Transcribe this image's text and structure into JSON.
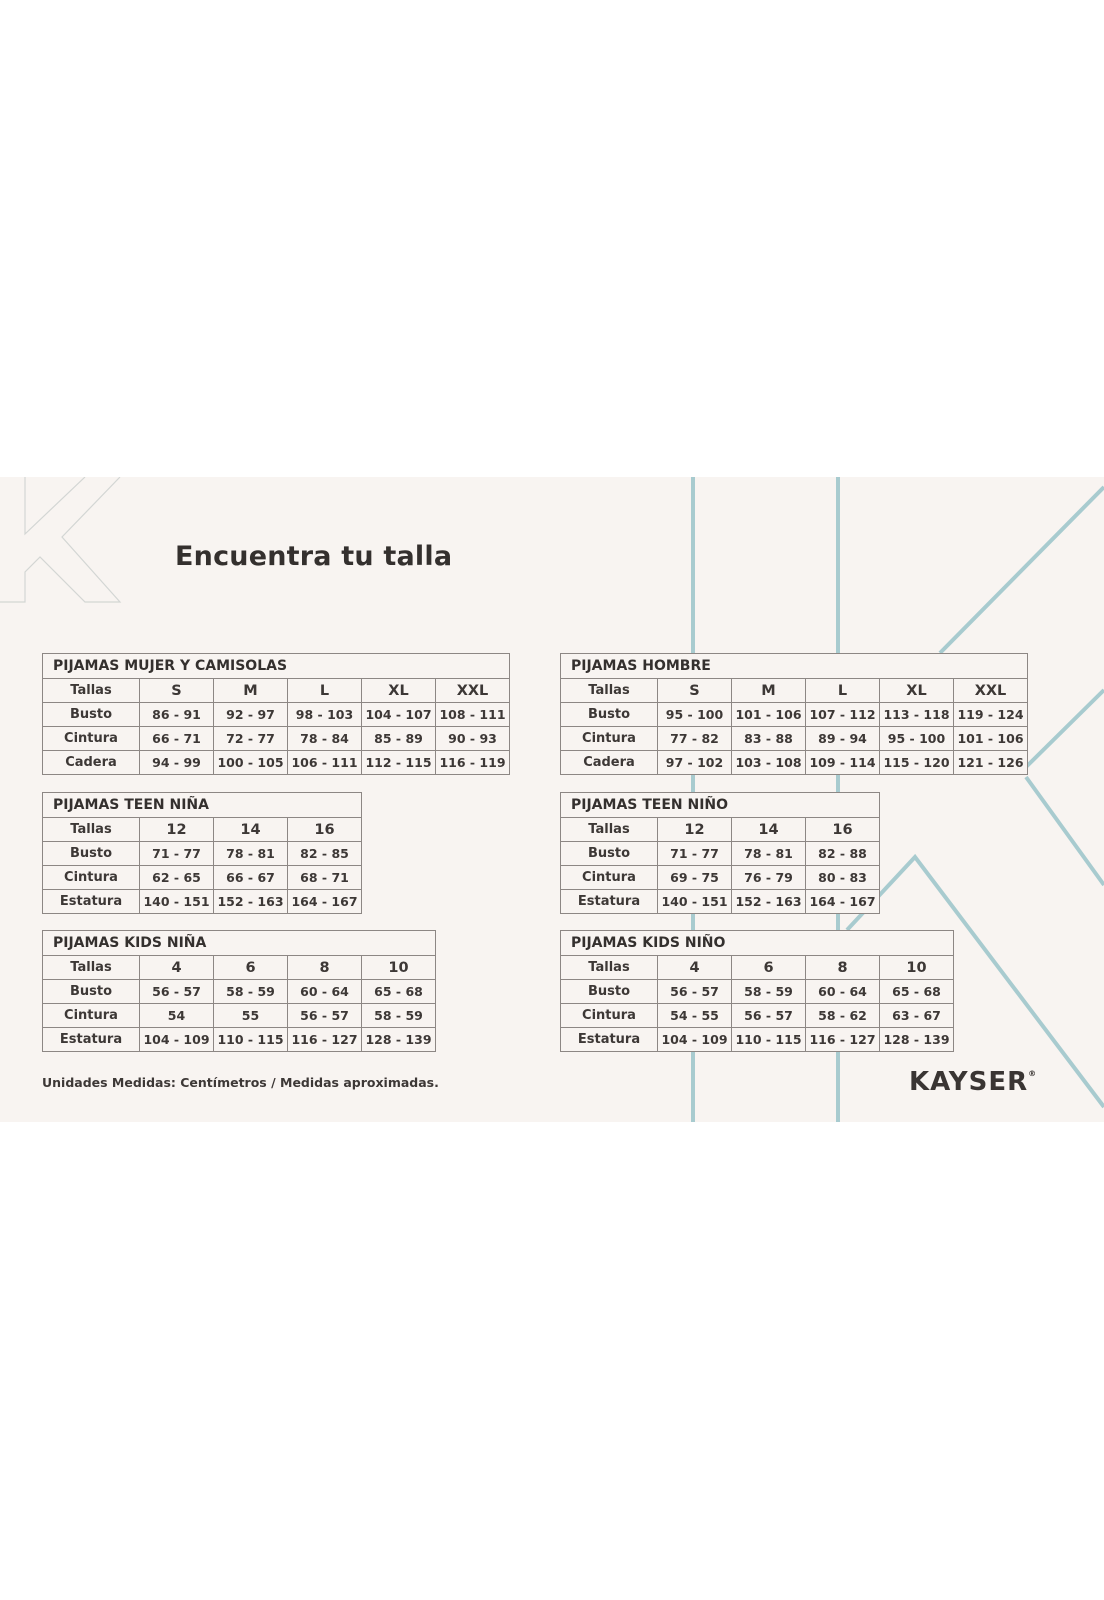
{
  "title": "Encuentra tu talla",
  "colors": {
    "background": "#f8f4f1",
    "accent_lines": "#a8cbcf",
    "text": "#3a3533",
    "border": "#8d8784"
  },
  "tables": [
    {
      "id": "mujer",
      "caption": "PIJAMAS MUJER Y CAMISOLAS",
      "header": [
        "Tallas",
        "S",
        "M",
        "L",
        "XL",
        "XXL"
      ],
      "rows": [
        [
          "Busto",
          "86 - 91",
          "92 - 97",
          "98 - 103",
          "104 - 107",
          "108 - 111"
        ],
        [
          "Cintura",
          "66 - 71",
          "72 - 77",
          "78 - 84",
          "85 - 89",
          "90 - 93"
        ],
        [
          "Cadera",
          "94 - 99",
          "100 - 105",
          "106 - 111",
          "112 - 115",
          "116 - 119"
        ]
      ]
    },
    {
      "id": "hombre",
      "caption": "PIJAMAS HOMBRE",
      "header": [
        "Tallas",
        "S",
        "M",
        "L",
        "XL",
        "XXL"
      ],
      "rows": [
        [
          "Busto",
          "95 - 100",
          "101 - 106",
          "107 - 112",
          "113 - 118",
          "119 - 124"
        ],
        [
          "Cintura",
          "77 - 82",
          "83 - 88",
          "89 - 94",
          "95 - 100",
          "101 - 106"
        ],
        [
          "Cadera",
          "97 - 102",
          "103 - 108",
          "109 - 114",
          "115 - 120",
          "121 - 126"
        ]
      ]
    },
    {
      "id": "teen-nina",
      "caption": "PIJAMAS TEEN NIÑA",
      "header": [
        "Tallas",
        "12",
        "14",
        "16"
      ],
      "rows": [
        [
          "Busto",
          "71 - 77",
          "78 - 81",
          "82 - 85"
        ],
        [
          "Cintura",
          "62 - 65",
          "66 - 67",
          "68 - 71"
        ],
        [
          "Estatura",
          "140 - 151",
          "152 - 163",
          "164 - 167"
        ]
      ]
    },
    {
      "id": "teen-nino",
      "caption": "PIJAMAS TEEN NIÑO",
      "header": [
        "Tallas",
        "12",
        "14",
        "16"
      ],
      "rows": [
        [
          "Busto",
          "71 - 77",
          "78 - 81",
          "82 - 88"
        ],
        [
          "Cintura",
          "69 - 75",
          "76 - 79",
          "80 - 83"
        ],
        [
          "Estatura",
          "140 - 151",
          "152 - 163",
          "164 - 167"
        ]
      ]
    },
    {
      "id": "kids-nina",
      "caption": "PIJAMAS KIDS NIÑA",
      "header": [
        "Tallas",
        "4",
        "6",
        "8",
        "10"
      ],
      "rows": [
        [
          "Busto",
          "56 - 57",
          "58 - 59",
          "60 - 64",
          "65 - 68"
        ],
        [
          "Cintura",
          "54",
          "55",
          "56 - 57",
          "58 - 59"
        ],
        [
          "Estatura",
          "104 - 109",
          "110 - 115",
          "116 - 127",
          "128 - 139"
        ]
      ]
    },
    {
      "id": "kids-nino",
      "caption": "PIJAMAS KIDS NIÑO",
      "header": [
        "Tallas",
        "4",
        "6",
        "8",
        "10"
      ],
      "rows": [
        [
          "Busto",
          "56 - 57",
          "58 - 59",
          "60 - 64",
          "65 - 68"
        ],
        [
          "Cintura",
          "54 - 55",
          "56 - 57",
          "58 - 62",
          "63 - 67"
        ],
        [
          "Estatura",
          "104 - 109",
          "110 - 115",
          "116 - 127",
          "128 - 139"
        ]
      ]
    }
  ],
  "footnote": "Unidades Medidas: Centímetros / Medidas aproximadas.",
  "logo": {
    "text": "KAYSER",
    "mark": "®"
  }
}
